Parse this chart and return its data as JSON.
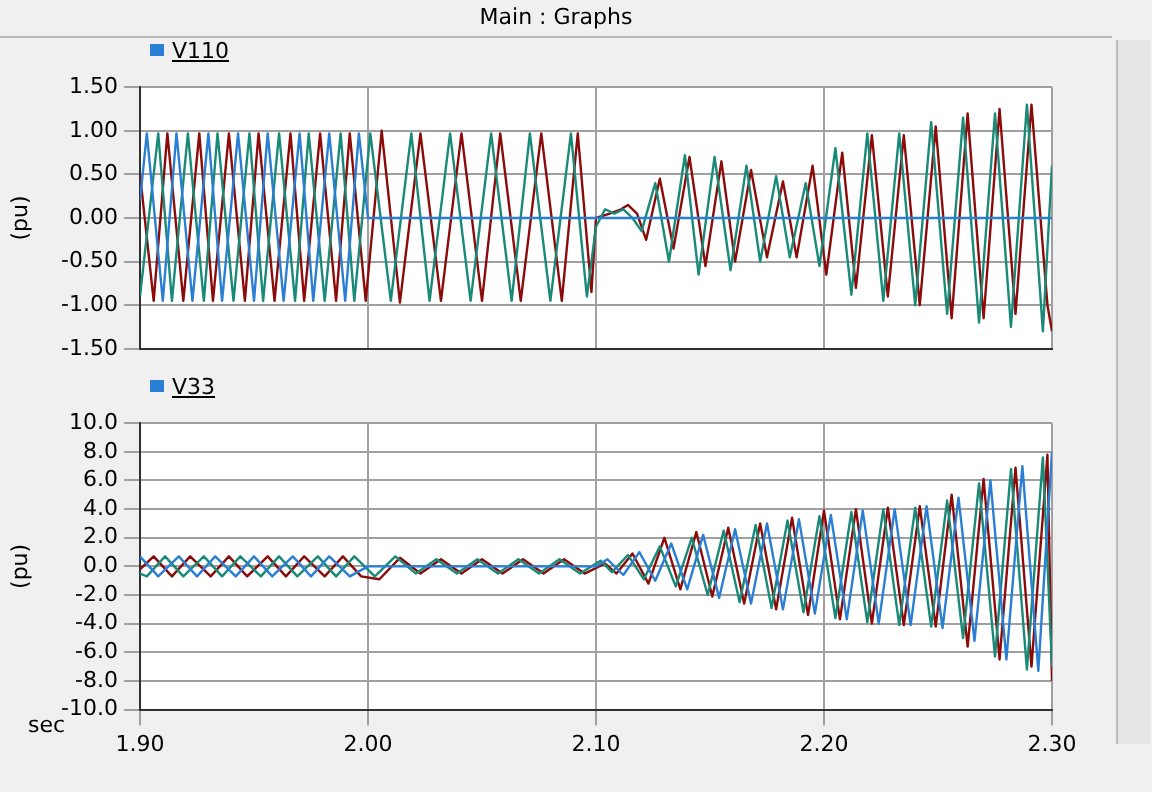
{
  "chart_data": [
    {
      "type": "line",
      "title": "V110",
      "annotations": [
        "Main : Graphs"
      ],
      "ylabel": "(pu)",
      "xlim": [
        1.9,
        2.3
      ],
      "xticks": [
        1.9,
        2.0,
        2.1,
        2.2,
        2.3
      ],
      "ylim": [
        -1.5,
        1.5
      ],
      "yticks": [
        {
          "value": -1.5,
          "label": "-1.50"
        },
        {
          "value": -1.0,
          "label": "-1.00"
        },
        {
          "value": -0.5,
          "label": "-0.50"
        },
        {
          "value": 0,
          "label": "0.00"
        },
        {
          "value": 0.5,
          "label": "0.50"
        },
        {
          "value": 1.0,
          "label": "1.00"
        },
        {
          "value": 1.5,
          "label": "1.50"
        }
      ],
      "grid": true,
      "tick_labels": "y",
      "marker": "none",
      "line_style": "solid",
      "series": [
        {
          "color": "#2a7fd4",
          "x": [
            1.9,
            1.903,
            1.91,
            1.916,
            1.923,
            1.93,
            1.936,
            1.943,
            1.95,
            1.956,
            1.963,
            1.97,
            1.976,
            1.983,
            1.99,
            1.996,
            2.0,
            2.3
          ],
          "values": [
            0.2,
            0.97,
            -0.95,
            0.97,
            -0.95,
            0.97,
            -0.95,
            0.97,
            -0.95,
            0.97,
            -0.95,
            0.97,
            -0.95,
            0.97,
            -0.95,
            0.97,
            0.0,
            0.0
          ]
        },
        {
          "color": "#1a8a78",
          "x": [
            1.9,
            1.908,
            1.914,
            1.921,
            1.928,
            1.934,
            1.941,
            1.948,
            1.954,
            1.961,
            1.968,
            1.974,
            1.981,
            1.988,
            1.994,
            2.001,
            2.01,
            2.019,
            2.027,
            2.036,
            2.045,
            2.054,
            2.063,
            2.071,
            2.08,
            2.089,
            2.096,
            2.1,
            2.104,
            2.108,
            2.112,
            2.116,
            2.12,
            2.126,
            2.132,
            2.139,
            2.145,
            2.152,
            2.159,
            2.166,
            2.172,
            2.179,
            2.185,
            2.192,
            2.198,
            2.205,
            2.212,
            2.219,
            2.226,
            2.233,
            2.24,
            2.247,
            2.254,
            2.261,
            2.268,
            2.275,
            2.282,
            2.289,
            2.296,
            2.3
          ],
          "values": [
            -0.9,
            0.97,
            -0.95,
            0.97,
            -0.95,
            0.97,
            -0.95,
            0.97,
            -0.95,
            0.97,
            -0.95,
            0.97,
            -0.95,
            0.97,
            -0.95,
            0.97,
            -0.95,
            0.97,
            -0.95,
            0.97,
            -0.95,
            0.97,
            -0.95,
            0.97,
            -0.95,
            0.97,
            -0.9,
            -0.1,
            0.1,
            0.05,
            0.1,
            0.0,
            -0.15,
            0.4,
            -0.5,
            0.72,
            -0.65,
            0.7,
            -0.6,
            0.6,
            -0.5,
            0.48,
            -0.45,
            0.4,
            -0.55,
            0.8,
            -0.88,
            0.97,
            -0.95,
            0.97,
            -1.0,
            1.1,
            -1.1,
            1.15,
            -1.2,
            1.2,
            -1.25,
            1.3,
            -1.3,
            0.6
          ]
        },
        {
          "color": "#8b0a0a",
          "x": [
            1.9,
            1.906,
            1.912,
            1.919,
            1.926,
            1.932,
            1.939,
            1.946,
            1.952,
            1.959,
            1.966,
            1.972,
            1.979,
            1.986,
            1.992,
            1.999,
            2.006,
            2.014,
            2.023,
            2.032,
            2.041,
            2.05,
            2.058,
            2.067,
            2.076,
            2.085,
            2.092,
            2.098,
            2.1,
            2.106,
            2.111,
            2.114,
            2.118,
            2.122,
            2.128,
            2.134,
            2.141,
            2.148,
            2.155,
            2.161,
            2.168,
            2.175,
            2.182,
            2.188,
            2.195,
            2.201,
            2.208,
            2.214,
            2.221,
            2.228,
            2.235,
            2.242,
            2.249,
            2.256,
            2.263,
            2.27,
            2.277,
            2.284,
            2.291,
            2.298,
            2.3
          ],
          "values": [
            0.5,
            -0.95,
            0.97,
            -0.95,
            0.97,
            -0.95,
            0.97,
            -0.95,
            0.97,
            -0.95,
            0.97,
            -0.95,
            0.97,
            -0.95,
            0.97,
            -0.95,
            1.0,
            -0.97,
            0.97,
            -0.95,
            0.97,
            -0.95,
            0.97,
            -0.95,
            0.97,
            -0.95,
            0.97,
            -0.85,
            0.0,
            0.05,
            0.1,
            0.15,
            0.05,
            -0.25,
            0.45,
            -0.35,
            0.7,
            -0.55,
            0.65,
            -0.5,
            0.55,
            -0.45,
            0.42,
            -0.45,
            0.6,
            -0.65,
            0.75,
            -0.8,
            0.95,
            -0.9,
            0.95,
            -1.0,
            1.05,
            -1.15,
            1.2,
            -1.15,
            1.25,
            -1.1,
            1.3,
            -1.0,
            -1.3
          ]
        }
      ]
    },
    {
      "type": "line",
      "title": "V33",
      "ylabel": "(pu)",
      "xlabel": "sec",
      "xlim": [
        1.9,
        2.3
      ],
      "xticks": [
        {
          "value": 1.9,
          "label": "1.90"
        },
        {
          "value": 2.0,
          "label": "2.00"
        },
        {
          "value": 2.1,
          "label": "2.10"
        },
        {
          "value": 2.2,
          "label": "2.20"
        },
        {
          "value": 2.3,
          "label": "2.30"
        }
      ],
      "ylim": [
        -10,
        10
      ],
      "yticks": [
        {
          "value": -10,
          "label": "-10.0"
        },
        {
          "value": -8,
          "label": "-8.0"
        },
        {
          "value": -6,
          "label": "-6.0"
        },
        {
          "value": -4,
          "label": "-4.0"
        },
        {
          "value": -2,
          "label": "-2.0"
        },
        {
          "value": 0,
          "label": "0.0"
        },
        {
          "value": 2,
          "label": "2.0"
        },
        {
          "value": 4,
          "label": "4.0"
        },
        {
          "value": 6,
          "label": "6.0"
        },
        {
          "value": 8,
          "label": "8.0"
        },
        {
          "value": 10,
          "label": "10.0"
        }
      ],
      "grid": true,
      "marker": "none",
      "line_style": "solid",
      "series": [
        {
          "color": "#2a7fd4",
          "x": [
            1.9,
            1.908,
            1.917,
            1.925,
            1.933,
            1.942,
            1.95,
            1.958,
            1.967,
            1.975,
            1.983,
            1.992,
            2.0,
            2.1,
            2.105,
            2.112,
            2.119,
            2.126,
            2.133,
            2.14,
            2.147,
            2.154,
            2.161,
            2.168,
            2.175,
            2.182,
            2.189,
            2.196,
            2.203,
            2.21,
            2.217,
            2.224,
            2.231,
            2.238,
            2.245,
            2.252,
            2.259,
            2.266,
            2.273,
            2.28,
            2.287,
            2.294,
            2.3
          ],
          "values": [
            0.7,
            -0.7,
            0.7,
            -0.7,
            0.7,
            -0.7,
            0.7,
            -0.7,
            0.7,
            -0.7,
            0.7,
            -0.7,
            0.0,
            0.0,
            0.5,
            -0.6,
            1.0,
            -1.0,
            1.6,
            -1.6,
            2.2,
            -2.2,
            2.6,
            -2.6,
            3.0,
            -3.0,
            3.3,
            -3.3,
            3.6,
            -3.7,
            3.9,
            -4.0,
            4.0,
            -4.1,
            4.2,
            -4.3,
            4.8,
            -5.2,
            6.0,
            -6.5,
            7.0,
            -7.3,
            8.0
          ]
        },
        {
          "color": "#1a8a78",
          "x": [
            1.9,
            1.903,
            1.911,
            1.919,
            1.928,
            1.936,
            1.944,
            1.953,
            1.961,
            1.969,
            1.978,
            1.986,
            1.994,
            2.003,
            2.012,
            2.021,
            2.03,
            2.039,
            2.048,
            2.057,
            2.066,
            2.075,
            2.084,
            2.093,
            2.102,
            2.107,
            2.114,
            2.121,
            2.128,
            2.135,
            2.142,
            2.149,
            2.156,
            2.163,
            2.17,
            2.177,
            2.184,
            2.191,
            2.198,
            2.205,
            2.212,
            2.219,
            2.226,
            2.233,
            2.24,
            2.247,
            2.254,
            2.261,
            2.268,
            2.275,
            2.282,
            2.289,
            2.296,
            2.3
          ],
          "values": [
            -0.5,
            -0.7,
            0.7,
            -0.7,
            0.7,
            -0.7,
            0.7,
            -0.7,
            0.7,
            -0.7,
            0.7,
            -0.7,
            0.7,
            -0.7,
            0.7,
            -0.5,
            0.5,
            -0.5,
            0.5,
            -0.5,
            0.5,
            -0.5,
            0.5,
            -0.5,
            0.4,
            -0.4,
            0.8,
            -0.9,
            1.4,
            -1.4,
            2.0,
            -2.0,
            2.5,
            -2.5,
            2.9,
            -2.9,
            3.2,
            -3.2,
            3.5,
            -3.6,
            3.8,
            -3.9,
            4.0,
            -4.1,
            4.1,
            -4.2,
            4.6,
            -5.0,
            5.8,
            -6.3,
            6.8,
            -7.2,
            7.6,
            -7.0
          ]
        },
        {
          "color": "#8b0a0a",
          "x": [
            1.9,
            1.906,
            1.914,
            1.922,
            1.931,
            1.939,
            1.947,
            1.956,
            1.964,
            1.972,
            1.981,
            1.989,
            1.997,
            2.005,
            2.014,
            2.023,
            2.032,
            2.041,
            2.05,
            2.059,
            2.068,
            2.077,
            2.086,
            2.095,
            2.104,
            2.109,
            2.116,
            2.123,
            2.13,
            2.137,
            2.144,
            2.151,
            2.158,
            2.165,
            2.172,
            2.179,
            2.186,
            2.193,
            2.2,
            2.207,
            2.214,
            2.221,
            2.228,
            2.235,
            2.242,
            2.249,
            2.256,
            2.263,
            2.27,
            2.277,
            2.284,
            2.291,
            2.298,
            2.3
          ],
          "values": [
            -0.2,
            0.7,
            -0.7,
            0.7,
            -0.7,
            0.7,
            -0.7,
            0.7,
            -0.7,
            0.7,
            -0.7,
            0.7,
            -0.7,
            -0.9,
            0.6,
            -0.5,
            0.5,
            -0.5,
            0.5,
            -0.5,
            0.5,
            -0.5,
            0.5,
            -0.5,
            0.2,
            -0.5,
            0.9,
            -1.2,
            2.0,
            -1.6,
            2.4,
            -2.1,
            2.7,
            -2.6,
            3.0,
            -3.0,
            3.4,
            -3.4,
            3.9,
            -3.7,
            4.0,
            -4.0,
            4.1,
            -4.1,
            4.2,
            -4.2,
            5.0,
            -5.6,
            6.1,
            -6.5,
            6.9,
            -7.0,
            7.8,
            -8.0
          ]
        }
      ]
    }
  ]
}
